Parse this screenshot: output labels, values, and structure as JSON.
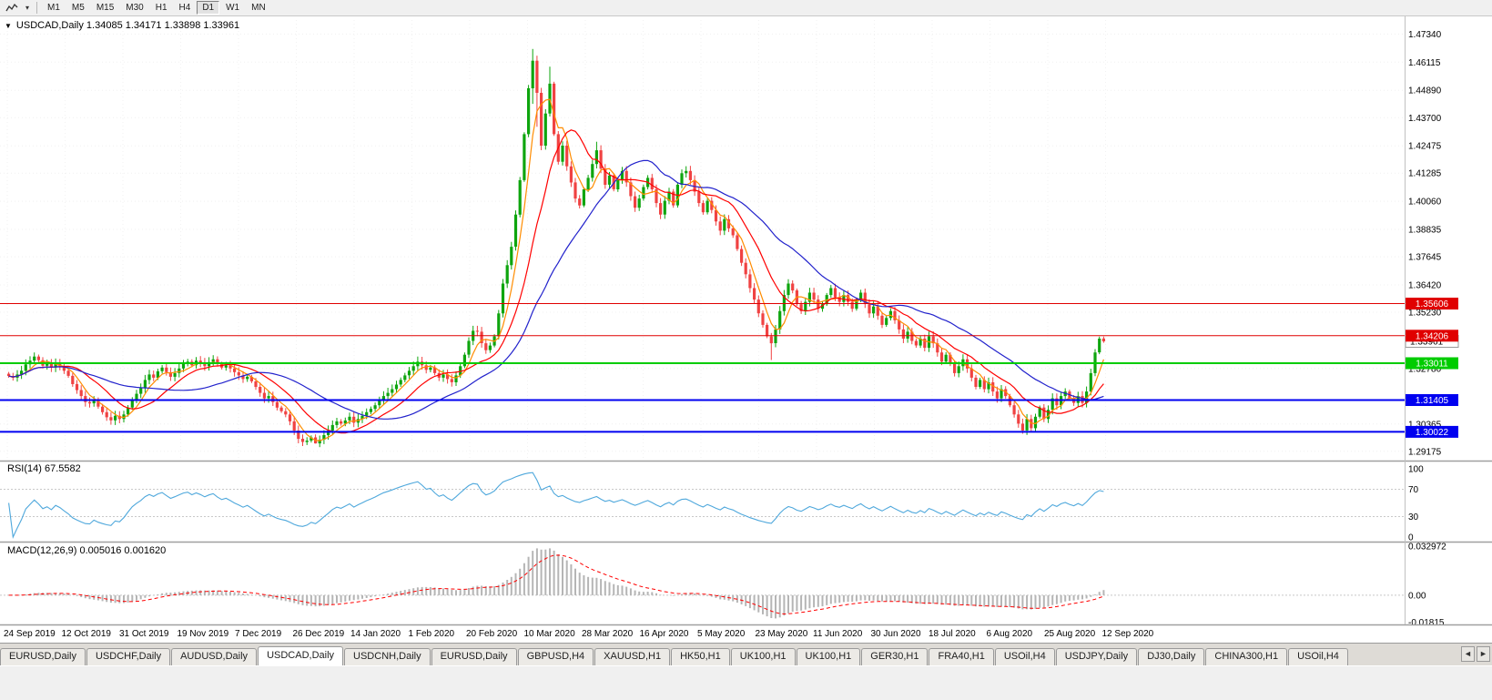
{
  "toolbar": {
    "dropdown_glyph": "▾",
    "timeframes": [
      {
        "label": "M1",
        "active": false
      },
      {
        "label": "M5",
        "active": false
      },
      {
        "label": "M15",
        "active": false
      },
      {
        "label": "M30",
        "active": false
      },
      {
        "label": "H1",
        "active": false
      },
      {
        "label": "H4",
        "active": false
      },
      {
        "label": "D1",
        "active": true
      },
      {
        "label": "W1",
        "active": false
      },
      {
        "label": "MN",
        "active": false
      }
    ]
  },
  "chart": {
    "collapse_arrow": "▼",
    "title": "USDCAD,Daily 1.34085 1.34171 1.33898 1.33961"
  },
  "chart_data": {
    "type": "candlestick",
    "symbol": "USDCAD",
    "period": "Daily",
    "current_ohlc": {
      "open": 1.34085,
      "high": 1.34171,
      "low": 1.33898,
      "close": 1.33961
    },
    "first_open": 1.3255,
    "closes": [
      1.3245,
      1.3238,
      1.3252,
      1.3268,
      1.3296,
      1.3312,
      1.333,
      1.3314,
      1.329,
      1.3298,
      1.3282,
      1.33,
      1.3288,
      1.3268,
      1.3246,
      1.321,
      1.3184,
      1.3158,
      1.3132,
      1.3126,
      1.3142,
      1.3112,
      1.3088,
      1.3066,
      1.3052,
      1.3072,
      1.3058,
      1.3078,
      1.3108,
      1.3142,
      1.3168,
      1.3192,
      1.3228,
      1.3252,
      1.3238,
      1.3266,
      1.3282,
      1.3262,
      1.3242,
      1.3258,
      1.3278,
      1.3298,
      1.3308,
      1.3292,
      1.3312,
      1.3302,
      1.3288,
      1.3306,
      1.3318,
      1.3298,
      1.3282,
      1.3292,
      1.3278,
      1.3262,
      1.3248,
      1.3232,
      1.3242,
      1.3222,
      1.3198,
      1.3172,
      1.3148,
      1.3158,
      1.3132,
      1.3108,
      1.3092,
      1.3078,
      1.3048,
      1.3008,
      1.2972,
      1.2958,
      1.2964,
      1.2978,
      1.2952,
      1.2968,
      1.2988,
      1.3008,
      1.3032,
      1.3048,
      1.3038,
      1.3052,
      1.3068,
      1.3042,
      1.3058,
      1.3072,
      1.3088,
      1.3102,
      1.3118,
      1.3138,
      1.3158,
      1.3172,
      1.3188,
      1.3208,
      1.3228,
      1.3248,
      1.3268,
      1.3288,
      1.3308,
      1.3292,
      1.3272,
      1.3282,
      1.3258,
      1.3238,
      1.3252,
      1.3232,
      1.3218,
      1.3248,
      1.3288,
      1.3338,
      1.3398,
      1.3442,
      1.3438,
      1.3388,
      1.3358,
      1.3378,
      1.3418,
      1.3518,
      1.3648,
      1.3728,
      1.3808,
      1.3948,
      1.4098,
      1.4298,
      1.4498,
      1.4618,
      1.4478,
      1.4248,
      1.4388,
      1.4518,
      1.4298,
      1.4178,
      1.4248,
      1.4158,
      1.4088,
      1.4018,
      1.3988,
      1.4058,
      1.4108,
      1.4168,
      1.4228,
      1.4148,
      1.4078,
      1.4118,
      1.4058,
      1.4098,
      1.4138,
      1.4088,
      1.4028,
      1.3978,
      1.4018,
      1.4068,
      1.4108,
      1.4058,
      1.3998,
      1.3948,
      1.4008,
      1.4048,
      1.3988,
      1.4078,
      1.4128,
      1.4138,
      1.4098,
      1.4048,
      1.3998,
      1.3958,
      1.4008,
      1.3968,
      1.3918,
      1.3878,
      1.3928,
      1.3888,
      1.3858,
      1.3798,
      1.3738,
      1.3688,
      1.3628,
      1.3578,
      1.3518,
      1.3468,
      1.3418,
      1.3388,
      1.3448,
      1.3528,
      1.3598,
      1.3648,
      1.3618,
      1.3558,
      1.3528,
      1.3568,
      1.3608,
      1.3578,
      1.3538,
      1.3558,
      1.3598,
      1.3628,
      1.3588,
      1.3568,
      1.3598,
      1.3568,
      1.3538,
      1.3578,
      1.3608,
      1.3558,
      1.3518,
      1.3548,
      1.3508,
      1.3468,
      1.3498,
      1.3528,
      1.3488,
      1.3448,
      1.3408,
      1.3438,
      1.3398,
      1.3378,
      1.3408,
      1.3368,
      1.3418,
      1.3388,
      1.3348,
      1.3308,
      1.3338,
      1.3298,
      1.3258,
      1.3288,
      1.3318,
      1.3278,
      1.3238,
      1.3198,
      1.3228,
      1.3188,
      1.3218,
      1.3178,
      1.3148,
      1.3188,
      1.3158,
      1.3118,
      1.3078,
      1.3038,
      1.3008,
      1.3058,
      1.3018,
      1.3068,
      1.3108,
      1.3058,
      1.3098,
      1.3148,
      1.3118,
      1.3158,
      1.3178,
      1.3148,
      1.3128,
      1.3158,
      1.3128,
      1.3178,
      1.3258,
      1.3348,
      1.3408,
      1.33961
    ],
    "wick_overrides": {
      "6": [
        1.3348,
        null
      ],
      "72": [
        null,
        1.2951
      ],
      "109": [
        1.3464,
        null
      ],
      "123": [
        1.4669,
        1.443
      ],
      "124": [
        null,
        1.433
      ],
      "127": [
        1.4592,
        null
      ],
      "138": [
        1.4265,
        null
      ],
      "179": [
        null,
        1.3315
      ],
      "238": [
        null,
        1.2994
      ]
    },
    "y_axis_ticks": [
      "1.47340",
      "1.46115",
      "1.44890",
      "1.43700",
      "1.42475",
      "1.41285",
      "1.40060",
      "1.38835",
      "1.37645",
      "1.36420",
      "1.35230",
      "1.32780",
      "1.30365",
      "1.29175"
    ],
    "x_labels": [
      "24 Sep 2019",
      "12 Oct 2019",
      "31 Oct 2019",
      "19 Nov 2019",
      "7 Dec 2019",
      "26 Dec 2019",
      "14 Jan 2020",
      "1 Feb 2020",
      "20 Feb 2020",
      "10 Mar 2020",
      "28 Mar 2020",
      "16 Apr 2020",
      "5 May 2020",
      "23 May 2020",
      "11 Jun 2020",
      "30 Jun 2020",
      "18 Jul 2020",
      "6 Aug 2020",
      "25 Aug 2020",
      "12 Sep 2020"
    ],
    "price_range": [
      1.2885,
      1.4795
    ],
    "current_price_tag": "1.33961",
    "hlines": [
      {
        "price": 1.35606,
        "label": "1.35606",
        "color": "#e00000",
        "width": 1
      },
      {
        "price": 1.34206,
        "label": "1.34206",
        "color": "#e00000",
        "width": 1
      },
      {
        "price": 1.33011,
        "label": "1.33011",
        "color": "#00cc00",
        "width": 2
      },
      {
        "price": 1.31405,
        "label": "1.31405",
        "color": "#0000f0",
        "width": 2
      },
      {
        "price": 1.30022,
        "label": "1.30022",
        "color": "#0000f0",
        "width": 2
      }
    ],
    "moving_averages": [
      {
        "period": 5,
        "color": "#ff8c00"
      },
      {
        "period": 13,
        "color": "#ff0000"
      },
      {
        "period": 30,
        "color": "#2222cc"
      }
    ],
    "candle_colors": {
      "bull": "#0ea50e",
      "bear": "#f04242"
    },
    "rsi": {
      "label": "RSI(14) 67.5582",
      "period": 14,
      "value": 67.5582,
      "color": "#4fa8dc",
      "ticks": [
        100,
        70,
        30,
        0
      ],
      "levels": [
        70,
        30
      ]
    },
    "macd": {
      "label": "MACD(12,26,9) 0.005016 0.001620",
      "fast": 12,
      "slow": 26,
      "signal_period": 9,
      "values": [
        0.005016,
        0.00162
      ],
      "bar_color": "#b5b5b5",
      "signal_color": "#ff0000",
      "ticks": [
        {
          "value": 0.032972,
          "label": "0.032972"
        },
        {
          "value": 0,
          "label": "0.00"
        },
        {
          "value": -0.01815,
          "label": "-0.01815"
        }
      ]
    }
  },
  "tabs": {
    "scroll_left": "◄",
    "scroll_right": "►",
    "items": [
      {
        "label": "EURUSD,Daily",
        "active": false
      },
      {
        "label": "USDCHF,Daily",
        "active": false
      },
      {
        "label": "AUDUSD,Daily",
        "active": false
      },
      {
        "label": "USDCAD,Daily",
        "active": true
      },
      {
        "label": "USDCNH,Daily",
        "active": false
      },
      {
        "label": "EURUSD,Daily",
        "active": false
      },
      {
        "label": "GBPUSD,H4",
        "active": false
      },
      {
        "label": "XAUUSD,H1",
        "active": false
      },
      {
        "label": "HK50,H1",
        "active": false
      },
      {
        "label": "UK100,H1",
        "active": false
      },
      {
        "label": "UK100,H1",
        "active": false
      },
      {
        "label": "GER30,H1",
        "active": false
      },
      {
        "label": "FRA40,H1",
        "active": false
      },
      {
        "label": "USOil,H4",
        "active": false
      },
      {
        "label": "USDJPY,Daily",
        "active": false
      },
      {
        "label": "DJ30,Daily",
        "active": false
      },
      {
        "label": "CHINA300,H1",
        "active": false
      },
      {
        "label": "USOil,H4",
        "active": false
      }
    ]
  }
}
